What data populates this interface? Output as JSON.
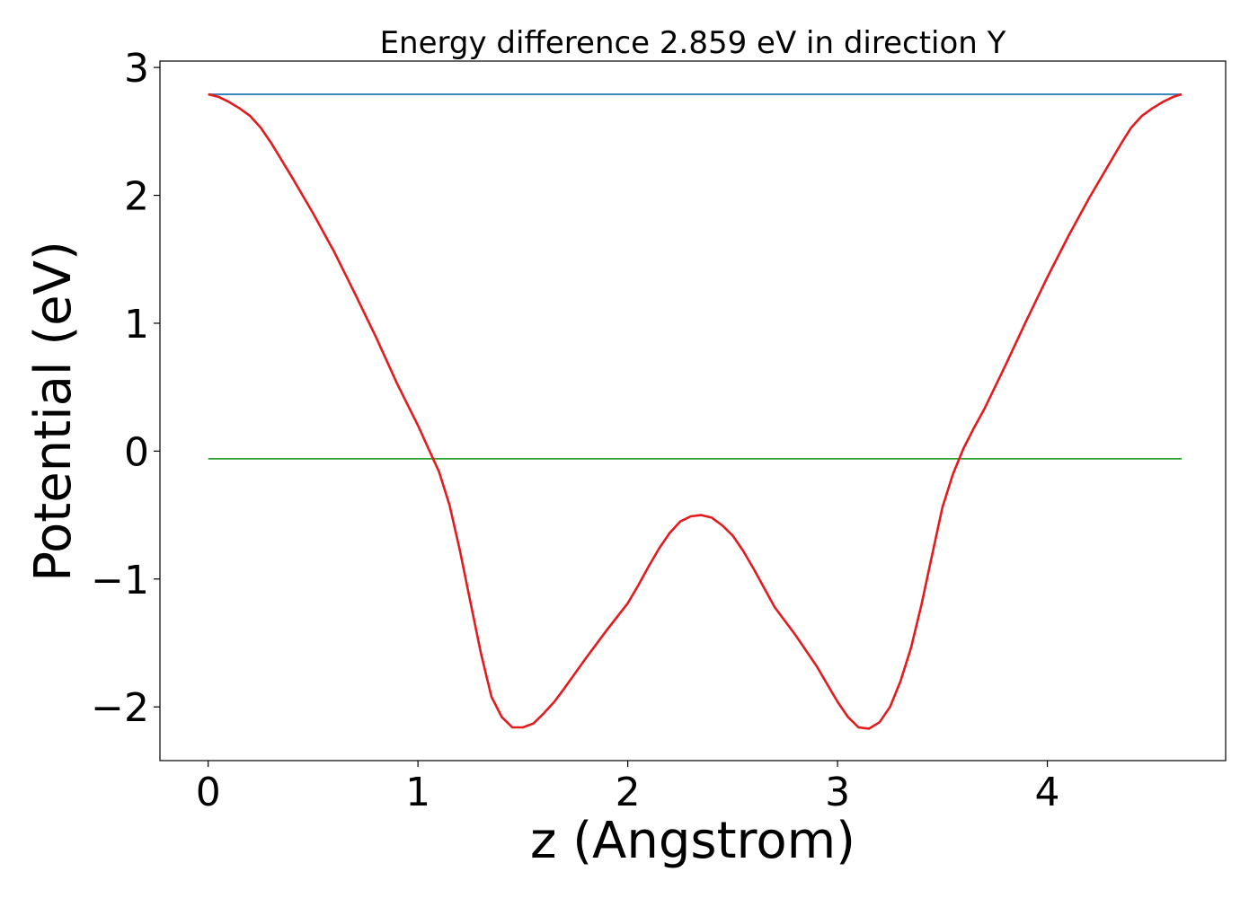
{
  "chart_data": {
    "type": "line",
    "title": "Energy difference 2.859 eV in direction Y",
    "xlabel": "z (Angstrom)",
    "ylabel": "Potential (eV)",
    "xlim": [
      -0.23,
      4.85
    ],
    "ylim": [
      -2.42,
      3.05
    ],
    "xticks": [
      0,
      1,
      2,
      3,
      4
    ],
    "xtick_labels": [
      "0",
      "1",
      "2",
      "3",
      "4"
    ],
    "yticks": [
      -2,
      -1,
      0,
      1,
      2,
      3
    ],
    "ytick_labels": [
      "−2",
      "−1",
      "0",
      "1",
      "2",
      "3"
    ],
    "grid": false,
    "series": [
      {
        "color": "#1f77b4",
        "x": [
          0,
          4.64
        ],
        "y": [
          2.79,
          2.79
        ]
      },
      {
        "color": "#2ca02c",
        "x": [
          0,
          4.64
        ],
        "y": [
          -0.06,
          -0.06
        ]
      },
      {
        "color": "#e41a1c",
        "x": [
          0,
          0.05,
          0.1,
          0.15,
          0.2,
          0.25,
          0.3,
          0.4,
          0.5,
          0.6,
          0.7,
          0.8,
          0.9,
          1.0,
          1.05,
          1.1,
          1.15,
          1.2,
          1.25,
          1.3,
          1.35,
          1.4,
          1.45,
          1.5,
          1.55,
          1.6,
          1.65,
          1.7,
          1.8,
          1.9,
          2.0,
          2.05,
          2.1,
          2.15,
          2.2,
          2.25,
          2.3,
          2.35,
          2.4,
          2.45,
          2.5,
          2.55,
          2.6,
          2.65,
          2.7,
          2.8,
          2.9,
          2.95,
          3.0,
          3.05,
          3.1,
          3.15,
          3.2,
          3.25,
          3.3,
          3.35,
          3.4,
          3.45,
          3.5,
          3.55,
          3.6,
          3.65,
          3.7,
          3.8,
          3.9,
          4.0,
          4.1,
          4.2,
          4.3,
          4.35,
          4.4,
          4.45,
          4.5,
          4.55,
          4.6,
          4.64
        ],
        "y": [
          2.79,
          2.77,
          2.73,
          2.68,
          2.62,
          2.53,
          2.41,
          2.14,
          1.86,
          1.56,
          1.23,
          0.89,
          0.53,
          0.2,
          0.02,
          -0.16,
          -0.42,
          -0.78,
          -1.18,
          -1.58,
          -1.92,
          -2.08,
          -2.16,
          -2.16,
          -2.13,
          -2.05,
          -1.96,
          -1.85,
          -1.62,
          -1.4,
          -1.19,
          -1.05,
          -0.9,
          -0.76,
          -0.64,
          -0.55,
          -0.51,
          -0.5,
          -0.52,
          -0.58,
          -0.66,
          -0.78,
          -0.92,
          -1.07,
          -1.22,
          -1.44,
          -1.68,
          -1.82,
          -1.96,
          -2.08,
          -2.16,
          -2.17,
          -2.12,
          -2.0,
          -1.8,
          -1.54,
          -1.2,
          -0.82,
          -0.44,
          -0.18,
          0.02,
          0.18,
          0.33,
          0.67,
          1.02,
          1.36,
          1.68,
          1.98,
          2.26,
          2.4,
          2.53,
          2.62,
          2.68,
          2.73,
          2.77,
          2.79
        ]
      }
    ]
  }
}
